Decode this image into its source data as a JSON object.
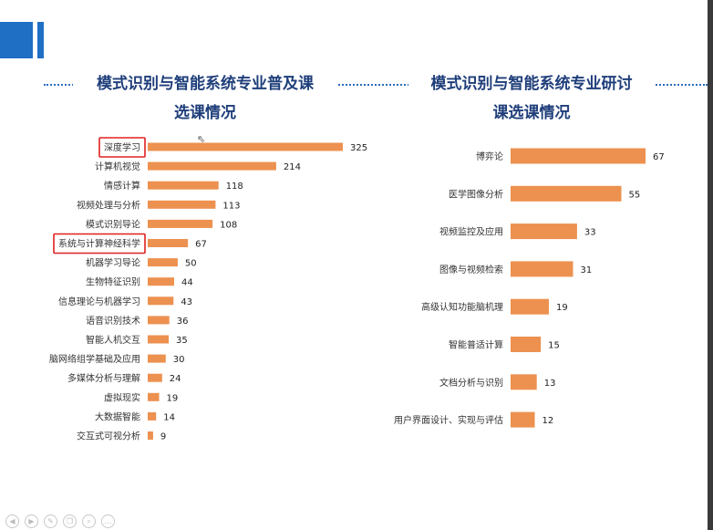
{
  "slide": {
    "title_left_line1": "模式识别与智能系统专业普及课",
    "title_left_line2": "选课情况",
    "title_right_line1": "模式识别与智能系统专业研讨",
    "title_right_line2": "课选课情况",
    "accent_color": "#1f6fc5",
    "bar_color": "#ed9150",
    "highlight_color": "#e02020"
  },
  "chart_data": [
    {
      "type": "bar",
      "orientation": "horizontal",
      "title": "模式识别与智能系统专业普及课选课情况",
      "categories": [
        "深度学习",
        "计算机视觉",
        "情感计算",
        "视频处理与分析",
        "模式识别导论",
        "系统与计算神经科学",
        "机器学习导论",
        "生物特征识别",
        "信息理论与机器学习",
        "语音识别技术",
        "智能人机交互",
        "脑网络组学基础及应用",
        "多媒体分析与理解",
        "虚拟现实",
        "大数据智能",
        "交互式可视分析"
      ],
      "values": [
        325,
        214,
        118,
        113,
        108,
        67,
        50,
        44,
        43,
        36,
        35,
        30,
        24,
        19,
        14,
        9
      ],
      "highlighted": [
        "深度学习",
        "系统与计算神经科学"
      ],
      "grid": false
    },
    {
      "type": "bar",
      "orientation": "horizontal",
      "title": "模式识别与智能系统专业研讨课选课情况",
      "categories": [
        "博弈论",
        "医学图像分析",
        "视频监控及应用",
        "图像与视频检索",
        "高级认知功能脑机理",
        "智能普适计算",
        "文档分析与识别",
        "用户界面设计、实现与评估"
      ],
      "values": [
        67,
        55,
        33,
        31,
        19,
        15,
        13,
        12
      ],
      "grid": false
    }
  ],
  "controls": {
    "icons": [
      "prev-icon",
      "next-icon",
      "pen-icon",
      "copy-icon",
      "zoom-icon",
      "more-icon"
    ]
  }
}
